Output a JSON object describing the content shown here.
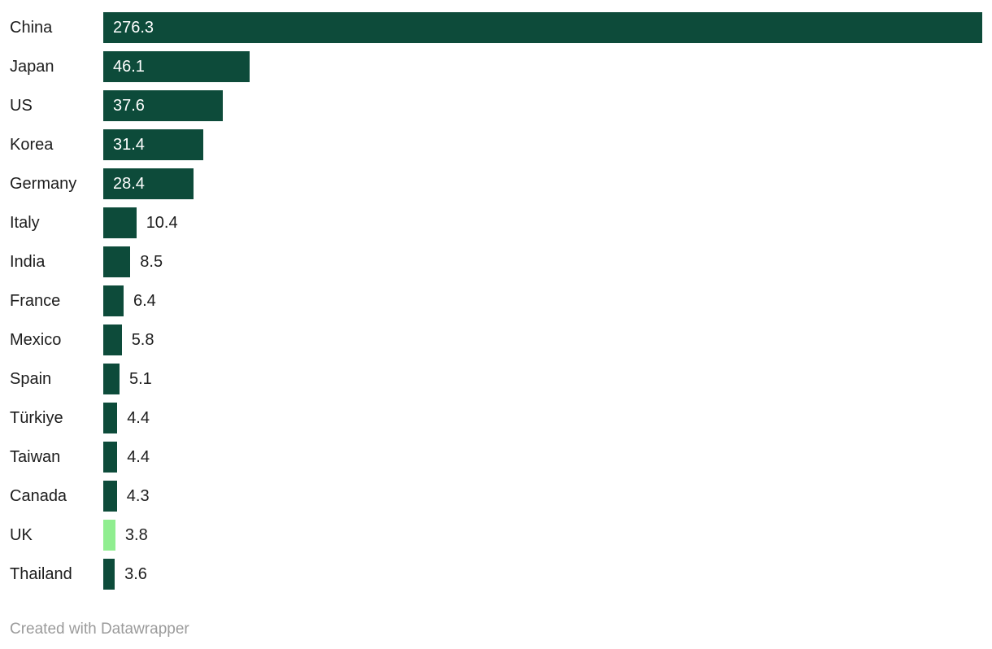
{
  "chart_data": {
    "type": "bar",
    "orientation": "horizontal",
    "title": "",
    "xlabel": "",
    "ylabel": "",
    "xlim": [
      0,
      276.3
    ],
    "grid": false,
    "legend": false,
    "categories": [
      "China",
      "Japan",
      "US",
      "Korea",
      "Germany",
      "Italy",
      "India",
      "France",
      "Mexico",
      "Spain",
      "Türkiye",
      "Taiwan",
      "Canada",
      "UK",
      "Thailand"
    ],
    "values": [
      276.3,
      46.1,
      37.6,
      31.4,
      28.4,
      10.4,
      8.5,
      6.4,
      5.8,
      5.1,
      4.4,
      4.4,
      4.3,
      3.8,
      3.6
    ],
    "rows": [
      {
        "label": "China",
        "value": 276.3,
        "value_label": "276.3",
        "color": "default"
      },
      {
        "label": "Japan",
        "value": 46.1,
        "value_label": "46.1",
        "color": "default"
      },
      {
        "label": "US",
        "value": 37.6,
        "value_label": "37.6",
        "color": "default"
      },
      {
        "label": "Korea",
        "value": 31.4,
        "value_label": "31.4",
        "color": "default"
      },
      {
        "label": "Germany",
        "value": 28.4,
        "value_label": "28.4",
        "color": "default"
      },
      {
        "label": "Italy",
        "value": 10.4,
        "value_label": "10.4",
        "color": "default"
      },
      {
        "label": "India",
        "value": 8.5,
        "value_label": "8.5",
        "color": "default"
      },
      {
        "label": "France",
        "value": 6.4,
        "value_label": "6.4",
        "color": "default"
      },
      {
        "label": "Mexico",
        "value": 5.8,
        "value_label": "5.8",
        "color": "default"
      },
      {
        "label": "Spain",
        "value": 5.1,
        "value_label": "5.1",
        "color": "default"
      },
      {
        "label": "Türkiye",
        "value": 4.4,
        "value_label": "4.4",
        "color": "default"
      },
      {
        "label": "Taiwan",
        "value": 4.4,
        "value_label": "4.4",
        "color": "default"
      },
      {
        "label": "Canada",
        "value": 4.3,
        "value_label": "4.3",
        "color": "default"
      },
      {
        "label": "UK",
        "value": 3.8,
        "value_label": "3.8",
        "color": "highlight"
      },
      {
        "label": "Thailand",
        "value": 3.6,
        "value_label": "3.6",
        "color": "default"
      }
    ],
    "colors": {
      "default": "#0d4b3a",
      "highlight": "#90ee90"
    }
  },
  "footer": {
    "attribution": "Created with Datawrapper"
  }
}
